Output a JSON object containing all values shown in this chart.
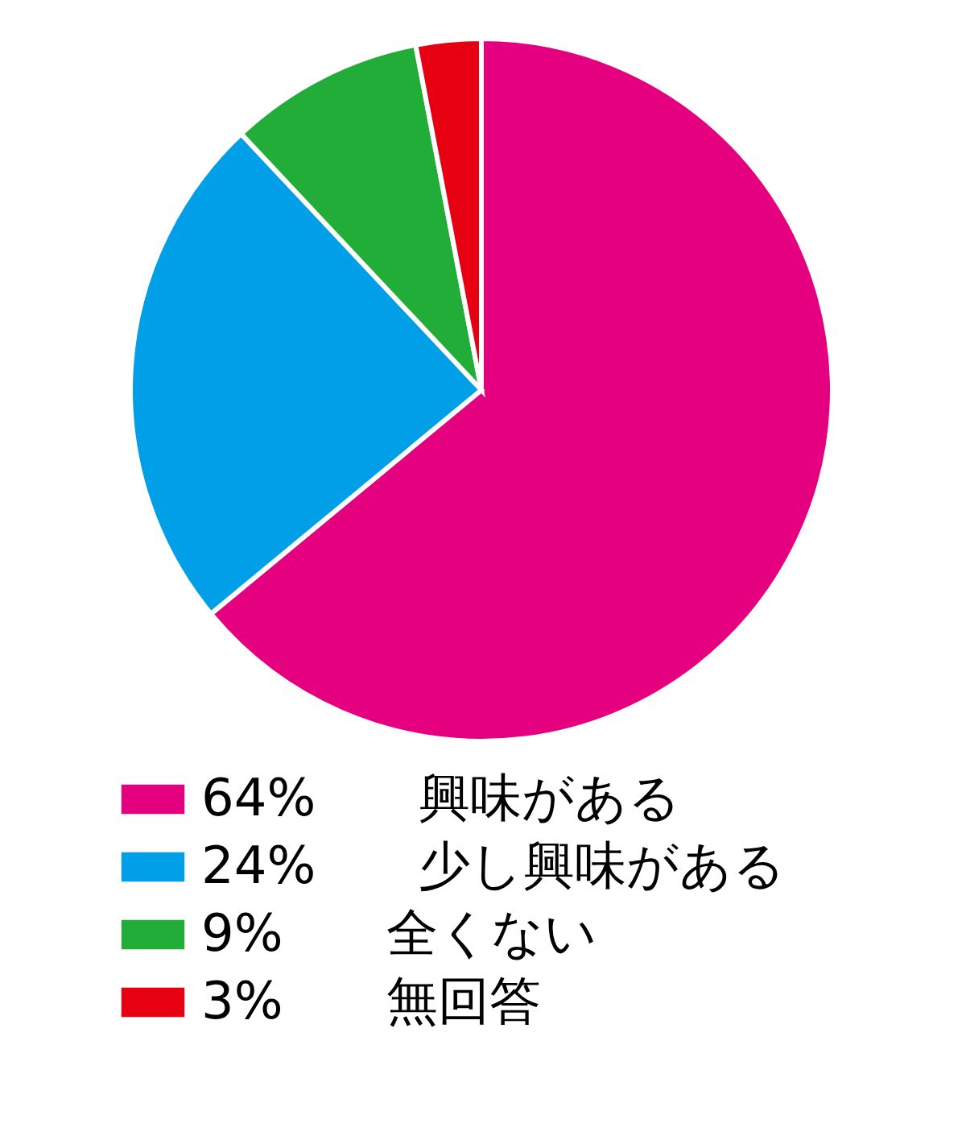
{
  "chart_data": {
    "type": "pie",
    "categories": [
      "興味がある",
      "少し興味がある",
      "全くない",
      "無回答"
    ],
    "values": [
      64,
      24,
      9,
      3
    ],
    "value_labels": [
      "64%",
      "24%",
      "9%",
      "3%"
    ],
    "colors": [
      "#e4007f",
      "#009fe8",
      "#22ac38",
      "#e60012"
    ],
    "legend": "bottom"
  }
}
